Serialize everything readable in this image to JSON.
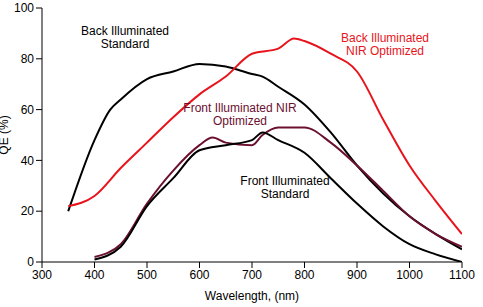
{
  "chart_data": {
    "type": "line",
    "x_label": "Wavelength, (nm)",
    "y_label": "QE (%)",
    "xlim": [
      300,
      1100
    ],
    "xticks": [
      300,
      400,
      500,
      600,
      700,
      800,
      900,
      1000,
      1100
    ],
    "ylim": [
      0,
      100
    ],
    "yticks": [
      0,
      20,
      40,
      60,
      80,
      100
    ],
    "grid": false,
    "series": [
      {
        "name": "Back Illuminated Standard",
        "color": "#000000",
        "x": [
          350,
          400,
          430,
          450,
          500,
          550,
          600,
          650,
          700,
          720,
          750,
          800,
          850,
          900,
          950,
          1000,
          1050,
          1100
        ],
        "values": [
          20,
          48,
          60,
          64,
          72,
          75,
          78,
          77,
          74,
          73,
          69,
          62,
          51,
          38,
          27,
          18,
          11,
          5
        ]
      },
      {
        "name": "Back Illuminated NIR Optimized",
        "color": "#e8141c",
        "x": [
          350,
          400,
          450,
          500,
          550,
          600,
          650,
          700,
          750,
          780,
          800,
          850,
          900,
          950,
          1000,
          1050,
          1100
        ],
        "values": [
          22,
          26,
          37,
          47,
          57,
          66,
          73,
          82,
          84,
          88,
          87,
          82,
          75,
          56,
          38,
          24,
          11
        ]
      },
      {
        "name": "Front Illuminated NIR Optimized",
        "color": "#6b1030",
        "x": [
          400,
          450,
          500,
          550,
          600,
          625,
          650,
          700,
          720,
          750,
          800,
          850,
          900,
          950,
          1000,
          1050,
          1100
        ],
        "values": [
          2,
          7,
          23,
          36,
          46,
          49,
          47,
          46,
          50,
          53,
          53,
          47,
          38,
          28,
          18,
          11,
          6
        ]
      },
      {
        "name": "Front Illuminated Standard",
        "color": "#000000",
        "x": [
          400,
          450,
          500,
          550,
          600,
          650,
          700,
          720,
          750,
          800,
          850,
          900,
          950,
          1000,
          1050,
          1100
        ],
        "values": [
          1,
          6,
          22,
          33,
          44,
          46,
          48,
          51,
          48,
          43,
          33,
          23,
          14,
          7,
          3,
          0
        ]
      }
    ]
  }
}
